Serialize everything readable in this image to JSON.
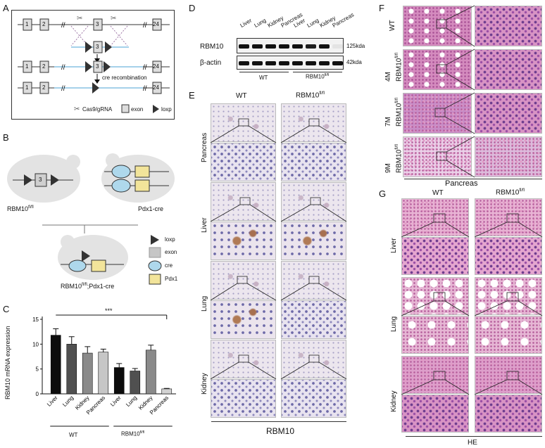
{
  "panels": {
    "A": "A",
    "B": "B",
    "C": "C",
    "D": "D",
    "E": "E",
    "F": "F",
    "G": "G"
  },
  "panelA": {
    "exons": [
      "1",
      "2",
      "3",
      "24"
    ],
    "cre_label": "cre recombination",
    "legend_cas9": "Cas9/gRNA",
    "legend_exon": "exon",
    "legend_loxp": "loxp"
  },
  "panelB": {
    "mouse1": "RBM10",
    "mouse1_sup": "fl/fl",
    "mouse2": "Pdx1-cre",
    "mouse3": "RBM10",
    "mouse3_sup": "fl/fl",
    "mouse3_suffix": ";Pdx1-cre",
    "exon_label": "3",
    "legend": [
      "loxp",
      "exon",
      "cre",
      "Pdx1"
    ]
  },
  "panelC": {
    "ylabel": "RBM10 mRNA expression",
    "significance": "***",
    "group_wt": "WT",
    "group_ko": "RBM10",
    "group_ko_sup": "fl/fl"
  },
  "chart_data": {
    "type": "bar",
    "categories": [
      "Liver",
      "Lung",
      "Kidney",
      "Pancreas",
      "Liver",
      "Lung",
      "Kidney",
      "Pancreas"
    ],
    "values": [
      11.8,
      10.0,
      8.2,
      8.4,
      5.3,
      4.6,
      8.8,
      1.0
    ],
    "errors": [
      1.3,
      1.5,
      1.3,
      0.6,
      0.8,
      0.5,
      1.0,
      0.1
    ],
    "colors": [
      "#0c0c0c",
      "#505050",
      "#8a8a8a",
      "#c6c6c6",
      "#0c0c0c",
      "#505050",
      "#8a8a8a",
      "#d2d2d2"
    ],
    "ylim": [
      0,
      15
    ],
    "yticks": [
      "0",
      "5",
      "10",
      "15"
    ],
    "ylabel": "RBM10 mRNA expression"
  },
  "panelD": {
    "lanes": [
      "Liver",
      "Lung",
      "Kidney",
      "Pancreas",
      "Liver",
      "Lung",
      "Kidney",
      "Pancreas"
    ],
    "row1": "RBM10",
    "row2": "β-actin",
    "kda1": "125kda",
    "kda2": "42kda",
    "group_wt": "WT",
    "group_ko": "RBM10",
    "group_ko_sup": "fl/fl",
    "rbm10_intensity": [
      1,
      1,
      1,
      1,
      1,
      0.95,
      1,
      0.05
    ]
  },
  "panelE": {
    "col_wt": "WT",
    "col_ko": "RBM10",
    "col_ko_sup": "fl/fl",
    "rows": [
      "Pancreas",
      "Liver",
      "Lung",
      "Kidney"
    ],
    "footer": "RBM10"
  },
  "panelF": {
    "rows": [
      {
        "line1": "WT",
        "line2": ""
      },
      {
        "line1": "4M",
        "line2": "RBM10"
      },
      {
        "line1": "7M",
        "line2": "RBM10"
      },
      {
        "line1": "9M",
        "line2": "RBM10"
      }
    ],
    "sup": "fl/fl",
    "footer": "Pancreas"
  },
  "panelG": {
    "col_wt": "WT",
    "col_ko": "RBM10",
    "col_ko_sup": "fl/fl",
    "rows": [
      "Liver",
      "Lung",
      "Kidney"
    ],
    "footer": "HE"
  }
}
